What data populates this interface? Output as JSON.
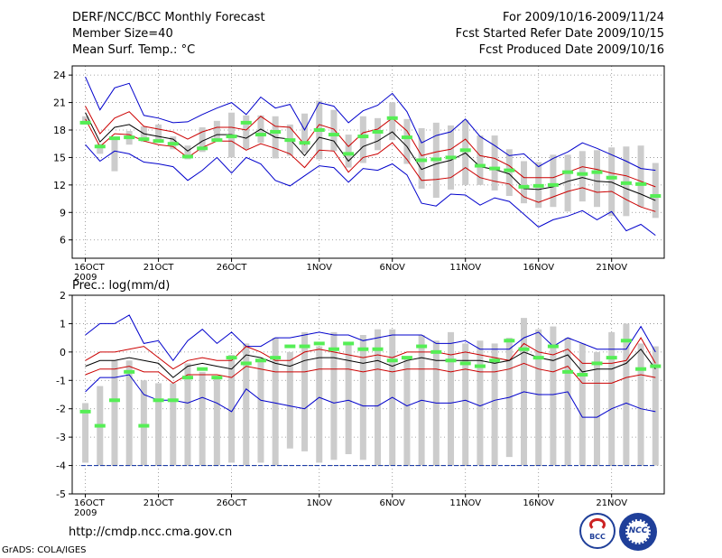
{
  "header": {
    "title": "DERF/NCC/BCC Monthly Forecast",
    "member_size": "Member Size=40",
    "variable": "Mean Surf. Temp.: °C",
    "period": "For 2009/10/16-2009/11/24",
    "started": "Fcst Started Refer Date 2009/10/15",
    "produced": "Fcst Produced Date 2009/10/16"
  },
  "footer": {
    "url": "http://cmdp.ncc.cma.gov.cn",
    "credit": "GrADS: COLA/IGES",
    "logo1_text": "BCC",
    "logo2_text": "NCC"
  },
  "colors": {
    "envelope": "#0000cc",
    "spread": "#cc0000",
    "mean": "#000000",
    "marker": "#55ee55",
    "box": "#cccccc"
  },
  "chart_data": [
    {
      "type": "line",
      "title": "Mean Surf. Temp.: °C",
      "xlabel": "",
      "ylabel": "",
      "x": [
        "Oct16",
        "Oct17",
        "Oct18",
        "Oct19",
        "Oct20",
        "Oct21",
        "Oct22",
        "Oct23",
        "Oct24",
        "Oct25",
        "Oct26",
        "Oct27",
        "Oct28",
        "Oct29",
        "Oct30",
        "Oct31",
        "Nov1",
        "Nov2",
        "Nov3",
        "Nov4",
        "Nov5",
        "Nov6",
        "Nov7",
        "Nov8",
        "Nov9",
        "Nov10",
        "Nov11",
        "Nov12",
        "Nov13",
        "Nov14",
        "Nov15",
        "Nov16",
        "Nov17",
        "Nov18",
        "Nov19",
        "Nov20",
        "Nov21",
        "Nov22",
        "Nov23",
        "Nov24"
      ],
      "x_tick_labels": [
        "16OCT",
        "21OCT",
        "26OCT",
        "1NOV",
        "6NOV",
        "11NOV",
        "16NOV",
        "21NOV"
      ],
      "year_label": "2009",
      "ylim": [
        4,
        25
      ],
      "y_ticks": [
        6,
        9,
        12,
        15,
        18,
        21,
        24
      ],
      "series": [
        {
          "name": "max",
          "values": [
            23.8,
            20.2,
            22.6,
            23.1,
            19.6,
            19.3,
            18.8,
            18.9,
            19.7,
            20.4,
            21.0,
            19.7,
            21.6,
            20.4,
            20.8,
            18.0,
            21.0,
            20.6,
            18.8,
            20.1,
            20.7,
            22.0,
            20.0,
            16.6,
            17.4,
            17.8,
            19.2,
            17.3,
            16.3,
            15.2,
            15.4,
            14.0,
            14.9,
            15.6,
            16.6,
            16.0,
            15.3,
            14.6,
            13.8,
            13.6
          ]
        },
        {
          "name": "upper",
          "values": [
            20.6,
            17.6,
            19.3,
            20.0,
            18.4,
            18.1,
            17.8,
            17.0,
            17.8,
            18.3,
            18.3,
            18.0,
            19.5,
            18.4,
            18.3,
            16.4,
            18.6,
            18.1,
            16.2,
            17.7,
            18.1,
            19.3,
            17.9,
            15.2,
            15.6,
            15.9,
            17.0,
            15.2,
            14.9,
            14.1,
            12.8,
            12.8,
            12.8,
            13.4,
            14.0,
            13.7,
            13.3,
            13.0,
            12.4,
            11.8
          ]
        },
        {
          "name": "mean",
          "values": [
            19.9,
            16.7,
            18.3,
            18.6,
            17.6,
            17.3,
            17.0,
            15.7,
            16.8,
            17.5,
            17.5,
            17.1,
            18.1,
            17.2,
            17.0,
            15.2,
            17.2,
            16.8,
            14.6,
            16.2,
            16.8,
            17.8,
            16.2,
            13.7,
            14.3,
            14.7,
            15.5,
            14.0,
            13.7,
            13.2,
            11.6,
            11.5,
            11.8,
            12.4,
            12.8,
            12.4,
            12.3,
            11.6,
            11.0,
            10.3
          ]
        },
        {
          "name": "lower",
          "values": [
            19.2,
            16.2,
            17.6,
            17.5,
            16.8,
            16.4,
            16.2,
            15.0,
            16.1,
            16.8,
            16.8,
            15.8,
            16.5,
            16.0,
            15.4,
            13.9,
            15.8,
            15.7,
            13.4,
            15.0,
            15.4,
            16.6,
            14.8,
            12.5,
            12.6,
            12.8,
            13.9,
            12.8,
            12.4,
            12.1,
            10.7,
            10.1,
            10.7,
            11.3,
            11.7,
            11.2,
            11.3,
            10.4,
            9.6,
            9.1
          ]
        },
        {
          "name": "min",
          "values": [
            16.4,
            14.6,
            15.7,
            15.4,
            14.5,
            14.3,
            14.0,
            12.5,
            13.6,
            15.0,
            13.3,
            15.0,
            14.3,
            12.5,
            11.9,
            13.0,
            14.1,
            13.9,
            12.3,
            13.8,
            13.6,
            14.3,
            13.1,
            10.0,
            9.7,
            11.0,
            10.9,
            9.8,
            10.6,
            10.2,
            8.8,
            7.4,
            8.2,
            8.6,
            9.2,
            8.2,
            9.1,
            7.0,
            7.7,
            6.5
          ]
        },
        {
          "name": "observed",
          "values": [
            18.8,
            16.2,
            17.1,
            17.2,
            17.0,
            16.8,
            16.5,
            15.1,
            16.0,
            16.9,
            17.3,
            18.8,
            17.5,
            17.8,
            16.9,
            16.6,
            18.0,
            17.5,
            15.4,
            17.3,
            17.8,
            19.3,
            17.2,
            14.7,
            14.8,
            15.0,
            15.8,
            14.1,
            13.8,
            13.6,
            11.8,
            11.9,
            12.0,
            13.4,
            13.2,
            13.4,
            12.8,
            12.2,
            12.1,
            10.8
          ]
        }
      ],
      "boxes": [
        [
          18.6,
          19.5
        ],
        [
          15.4,
          16.5
        ],
        [
          13.5,
          17.0
        ],
        [
          16.4,
          17.9
        ],
        [
          16.7,
          18.4
        ],
        [
          16.6,
          18.6
        ],
        [
          15.9,
          17.3
        ],
        [
          14.8,
          16.3
        ],
        [
          15.6,
          18.3
        ],
        [
          16.8,
          19.0
        ],
        [
          15.0,
          19.9
        ],
        [
          15.9,
          19.6
        ],
        [
          16.6,
          19.6
        ],
        [
          14.9,
          19.5
        ],
        [
          15.2,
          18.6
        ],
        [
          15.5,
          19.8
        ],
        [
          14.8,
          21.2
        ],
        [
          15.7,
          20.2
        ],
        [
          13.9,
          17.5
        ],
        [
          14.4,
          19.5
        ],
        [
          15.8,
          19.3
        ],
        [
          16.9,
          21.0
        ],
        [
          14.3,
          19.2
        ],
        [
          11.6,
          18.2
        ],
        [
          10.6,
          18.8
        ],
        [
          11.5,
          18.5
        ],
        [
          12.0,
          19.1
        ],
        [
          12.0,
          17.4
        ],
        [
          11.4,
          17.4
        ],
        [
          10.8,
          15.9
        ],
        [
          10.0,
          14.6
        ],
        [
          9.5,
          14.5
        ],
        [
          9.6,
          15.3
        ],
        [
          9.1,
          15.3
        ],
        [
          10.2,
          15.7
        ],
        [
          9.6,
          15.8
        ],
        [
          8.6,
          16.1
        ],
        [
          8.6,
          16.2
        ],
        [
          9.6,
          16.3
        ],
        [
          8.4,
          14.4
        ]
      ]
    },
    {
      "type": "line",
      "title": "Prec.: log(mm/d)",
      "xlabel": "",
      "ylabel": "",
      "x": [
        "Oct16",
        "Oct17",
        "Oct18",
        "Oct19",
        "Oct20",
        "Oct21",
        "Oct22",
        "Oct23",
        "Oct24",
        "Oct25",
        "Oct26",
        "Oct27",
        "Oct28",
        "Oct29",
        "Oct30",
        "Oct31",
        "Nov1",
        "Nov2",
        "Nov3",
        "Nov4",
        "Nov5",
        "Nov6",
        "Nov7",
        "Nov8",
        "Nov9",
        "Nov10",
        "Nov11",
        "Nov12",
        "Nov13",
        "Nov14",
        "Nov15",
        "Nov16",
        "Nov17",
        "Nov18",
        "Nov19",
        "Nov20",
        "Nov21",
        "Nov22",
        "Nov23",
        "Nov24"
      ],
      "x_tick_labels": [
        "16OCT",
        "21OCT",
        "26OCT",
        "1NOV",
        "6NOV",
        "11NOV",
        "16NOV",
        "21NOV"
      ],
      "year_label": "2009",
      "ylim": [
        -5,
        2
      ],
      "y_ticks": [
        -5,
        -4,
        -3,
        -2,
        -1,
        0,
        1,
        2
      ],
      "baseline": -4,
      "series": [
        {
          "name": "max",
          "values": [
            0.6,
            1.0,
            1.0,
            1.3,
            0.3,
            0.4,
            -0.3,
            0.4,
            0.8,
            0.3,
            0.7,
            0.2,
            0.2,
            0.5,
            0.5,
            0.6,
            0.7,
            0.6,
            0.6,
            0.4,
            0.5,
            0.6,
            0.6,
            0.6,
            0.3,
            0.3,
            0.4,
            0.1,
            0.1,
            0.1,
            0.5,
            0.7,
            0.2,
            0.5,
            0.3,
            0.1,
            0.1,
            0.1,
            0.9,
            0.0
          ]
        },
        {
          "name": "upper",
          "values": [
            -0.3,
            0.0,
            0.0,
            0.1,
            0.2,
            -0.2,
            -0.6,
            -0.3,
            -0.2,
            -0.3,
            -0.3,
            0.2,
            0.0,
            -0.3,
            -0.3,
            0.0,
            0.1,
            0.0,
            -0.1,
            -0.2,
            -0.1,
            -0.2,
            0.0,
            0.0,
            0.0,
            -0.1,
            0.0,
            -0.1,
            -0.2,
            -0.3,
            0.3,
            0.0,
            -0.1,
            0.1,
            -0.4,
            -0.4,
            -0.4,
            -0.3,
            0.5,
            -0.4
          ]
        },
        {
          "name": "mean",
          "values": [
            -0.5,
            -0.3,
            -0.3,
            -0.2,
            -0.3,
            -0.4,
            -0.9,
            -0.5,
            -0.4,
            -0.5,
            -0.6,
            -0.1,
            -0.2,
            -0.4,
            -0.5,
            -0.3,
            -0.2,
            -0.2,
            -0.3,
            -0.4,
            -0.3,
            -0.5,
            -0.3,
            -0.2,
            -0.3,
            -0.3,
            -0.3,
            -0.3,
            -0.4,
            -0.3,
            0.0,
            -0.2,
            -0.3,
            -0.1,
            -0.7,
            -0.6,
            -0.6,
            -0.4,
            0.1,
            -0.6
          ]
        },
        {
          "name": "lower",
          "values": [
            -0.8,
            -0.6,
            -0.6,
            -0.5,
            -0.7,
            -0.7,
            -1.1,
            -0.8,
            -0.8,
            -0.8,
            -0.9,
            -0.5,
            -0.6,
            -0.7,
            -0.7,
            -0.7,
            -0.6,
            -0.6,
            -0.6,
            -0.7,
            -0.6,
            -0.7,
            -0.6,
            -0.6,
            -0.6,
            -0.7,
            -0.6,
            -0.7,
            -0.7,
            -0.6,
            -0.4,
            -0.6,
            -0.7,
            -0.5,
            -1.1,
            -1.1,
            -1.1,
            -0.9,
            -0.8,
            -0.9
          ]
        },
        {
          "name": "min",
          "values": [
            -1.4,
            -0.9,
            -0.9,
            -0.8,
            -1.5,
            -1.7,
            -1.7,
            -1.8,
            -1.6,
            -1.8,
            -2.1,
            -1.3,
            -1.7,
            -1.8,
            -1.9,
            -2.0,
            -1.6,
            -1.8,
            -1.7,
            -1.9,
            -1.9,
            -1.6,
            -1.9,
            -1.7,
            -1.8,
            -1.8,
            -1.7,
            -1.9,
            -1.7,
            -1.6,
            -1.4,
            -1.5,
            -1.5,
            -1.4,
            -2.3,
            -2.3,
            -2.0,
            -1.8,
            -2.0,
            -2.1
          ]
        },
        {
          "name": "observed",
          "values": [
            -2.1,
            -2.6,
            -1.7,
            -0.7,
            -2.6,
            -1.7,
            -1.7,
            -0.9,
            -0.6,
            -0.9,
            -0.2,
            -0.4,
            -0.3,
            -0.2,
            0.2,
            0.2,
            0.3,
            0.1,
            0.3,
            0.1,
            0.1,
            -0.3,
            -0.2,
            0.2,
            0.0,
            -0.3,
            -0.4,
            -0.5,
            -0.3,
            0.4,
            0.1,
            -0.2,
            0.2,
            -0.7,
            -0.8,
            -0.4,
            -0.2,
            0.4,
            -0.6,
            -0.5
          ]
        }
      ],
      "boxes": [
        [
          -3.9,
          -1.8
        ],
        [
          -4.0,
          -1.2
        ],
        [
          -4.0,
          -0.3
        ],
        [
          -4.0,
          -0.3
        ],
        [
          -4.0,
          -1.0
        ],
        [
          -4.0,
          -1.1
        ],
        [
          -4.0,
          -1.1
        ],
        [
          -4.0,
          -0.4
        ],
        [
          -4.0,
          -0.7
        ],
        [
          -4.0,
          -0.9
        ],
        [
          -3.9,
          -0.1
        ],
        [
          -4.0,
          0.3
        ],
        [
          -3.9,
          -0.3
        ],
        [
          -4.0,
          0.5
        ],
        [
          -3.4,
          0.0
        ],
        [
          -3.5,
          0.7
        ],
        [
          -3.9,
          0.2
        ],
        [
          -3.8,
          0.7
        ],
        [
          -3.6,
          0.3
        ],
        [
          -3.8,
          0.6
        ],
        [
          -4.0,
          0.8
        ],
        [
          -4.0,
          0.8
        ],
        [
          -4.0,
          -0.2
        ],
        [
          -4.0,
          0.6
        ],
        [
          -4.0,
          0.4
        ],
        [
          -4.0,
          0.7
        ],
        [
          -4.0,
          0.3
        ],
        [
          -4.0,
          0.4
        ],
        [
          -4.0,
          0.3
        ],
        [
          -3.7,
          0.5
        ],
        [
          -4.0,
          1.2
        ],
        [
          -4.0,
          0.8
        ],
        [
          -4.0,
          0.9
        ],
        [
          -4.0,
          0.5
        ],
        [
          -4.0,
          0.3
        ],
        [
          -4.0,
          0.0
        ],
        [
          -4.0,
          0.7
        ],
        [
          -4.0,
          1.0
        ],
        [
          -4.0,
          0.3
        ],
        [
          -4.0,
          0.2
        ]
      ]
    }
  ]
}
